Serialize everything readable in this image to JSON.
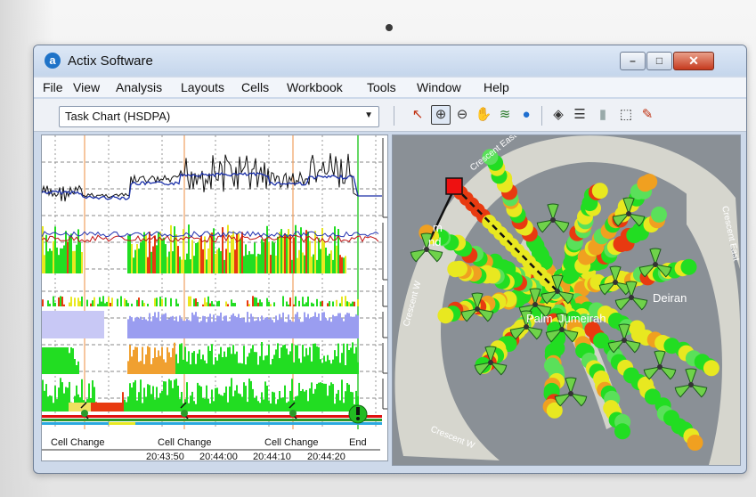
{
  "window": {
    "title": "Actix Software",
    "logo_letter": "a",
    "controls": {
      "minimize": "–",
      "maximize": "□",
      "close": "✕"
    }
  },
  "menu": [
    {
      "label": "File"
    },
    {
      "label": "View"
    },
    {
      "label": "Analysis"
    },
    {
      "label": "Layouts"
    },
    {
      "label": "Cells"
    },
    {
      "label": "Workbook"
    },
    {
      "label": "Tools"
    },
    {
      "label": "Window"
    },
    {
      "label": "Help"
    }
  ],
  "chart_selector": {
    "value": "Task Chart (HSDPA)",
    "arrow": "▼"
  },
  "map_tools": [
    {
      "name": "pointer-icon",
      "glyph": "↖",
      "active": false
    },
    {
      "name": "zoom-in-icon",
      "glyph": "⊕",
      "active": true
    },
    {
      "name": "zoom-out-icon",
      "glyph": "⊖",
      "active": false
    },
    {
      "name": "pan-hand-icon",
      "glyph": "✋",
      "active": false
    },
    {
      "name": "layers-stack-icon",
      "glyph": "≋",
      "active": false
    },
    {
      "name": "globe-icon",
      "glyph": "●",
      "active": false
    },
    {
      "name": "layer-control-icon",
      "glyph": "◈",
      "active": false
    },
    {
      "name": "legend-list-icon",
      "glyph": "☰",
      "active": false
    },
    {
      "name": "cell-info-icon",
      "glyph": "▮",
      "active": false
    },
    {
      "name": "select-region-icon",
      "glyph": "⬚",
      "active": false
    },
    {
      "name": "pin-tool-icon",
      "glyph": "✎",
      "active": false
    }
  ],
  "task_chart": {
    "events": [
      {
        "label": "Cell Change"
      },
      {
        "label": "Cell Change"
      },
      {
        "label": "Cell Change"
      },
      {
        "label": "End"
      }
    ],
    "time_ticks": [
      "20:43:50",
      "20:44:00",
      "20:44:10",
      "20:44:20"
    ],
    "colors": {
      "throughput": "#111111",
      "average": "#1a2fa8",
      "good": "#22dd22",
      "fair": "#e8e820",
      "poor": "#e83a10",
      "lilac": "#9a9df0"
    }
  },
  "map": {
    "labels": [
      "Crescent East",
      "Crescent East",
      "Crescent W",
      "Crescent W",
      "Palm",
      "Jumeirah",
      "Deiran",
      "m",
      "nd"
    ],
    "colors": {
      "land": "#d8d8d0",
      "water": "#8a9096"
    }
  }
}
